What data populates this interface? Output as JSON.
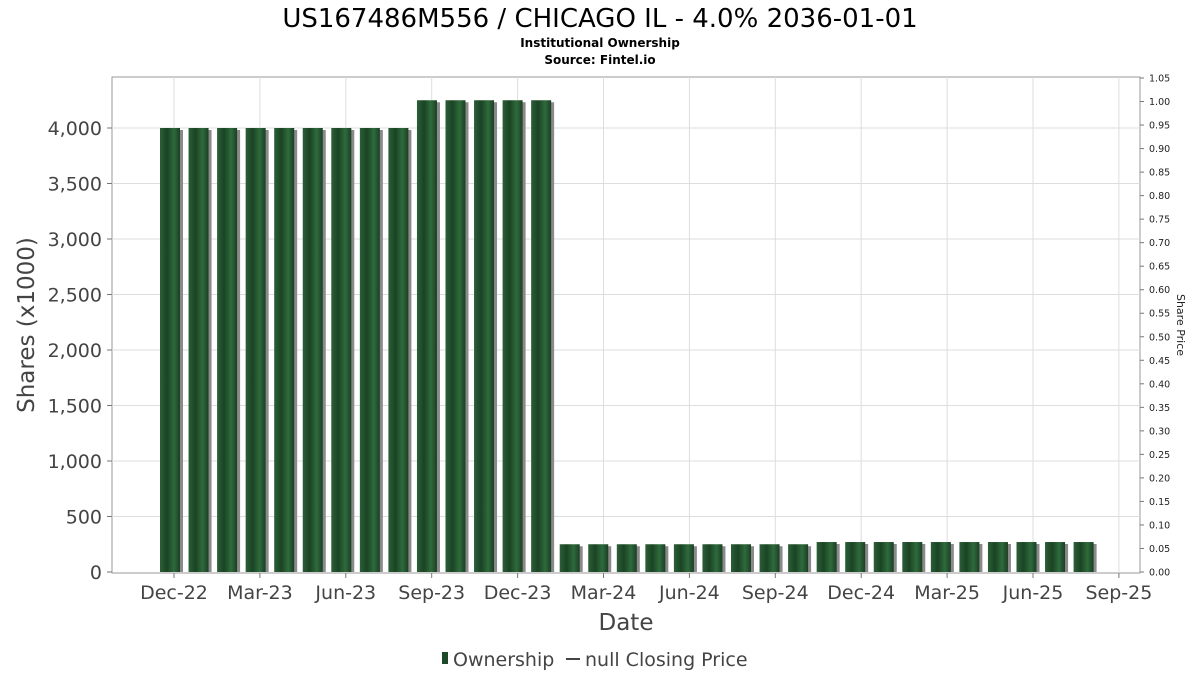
{
  "chart_data": {
    "type": "bar",
    "title": "US167486M556 / CHICAGO IL - 4.0% 2036-01-01",
    "subtitle": "Institutional Ownership",
    "source": "Source: Fintel.io",
    "xlabel": "Date",
    "ylabel": "Shares (x1000)",
    "y2label": "Share Price",
    "ylim": [
      0,
      4450
    ],
    "y2lim": [
      0,
      1.05
    ],
    "yticks": [
      "0",
      "500",
      "1,000",
      "1,500",
      "2,000",
      "2,500",
      "3,000",
      "3,500",
      "4,000"
    ],
    "y2ticks": [
      "0.00",
      "0.05",
      "0.10",
      "0.15",
      "0.20",
      "0.25",
      "0.30",
      "0.35",
      "0.40",
      "0.45",
      "0.50",
      "0.55",
      "0.60",
      "0.65",
      "0.70",
      "0.75",
      "0.80",
      "0.85",
      "0.90",
      "0.95",
      "1.00",
      "1.05"
    ],
    "xticks": [
      "Dec-22",
      "Mar-23",
      "Jun-23",
      "Sep-23",
      "Dec-23",
      "Mar-24",
      "Jun-24",
      "Sep-24",
      "Dec-24",
      "Mar-25",
      "Jun-25",
      "Sep-25"
    ],
    "grid": true,
    "legend_position": "bottom",
    "series": [
      {
        "name": "Ownership",
        "color": "#1e4a2a",
        "values": [
          4000,
          4000,
          4000,
          4000,
          4000,
          4000,
          4000,
          4000,
          4000,
          4250,
          4250,
          4250,
          4250,
          4250,
          250,
          250,
          250,
          250,
          250,
          250,
          250,
          250,
          250,
          270,
          270,
          270,
          270,
          270,
          270,
          270,
          270,
          270,
          270
        ]
      }
    ],
    "legend": [
      {
        "label": "Ownership",
        "marker": "bar",
        "color": "#1e4a2a"
      },
      {
        "label": "null Closing Price",
        "marker": "line",
        "color": "#444444"
      }
    ]
  }
}
